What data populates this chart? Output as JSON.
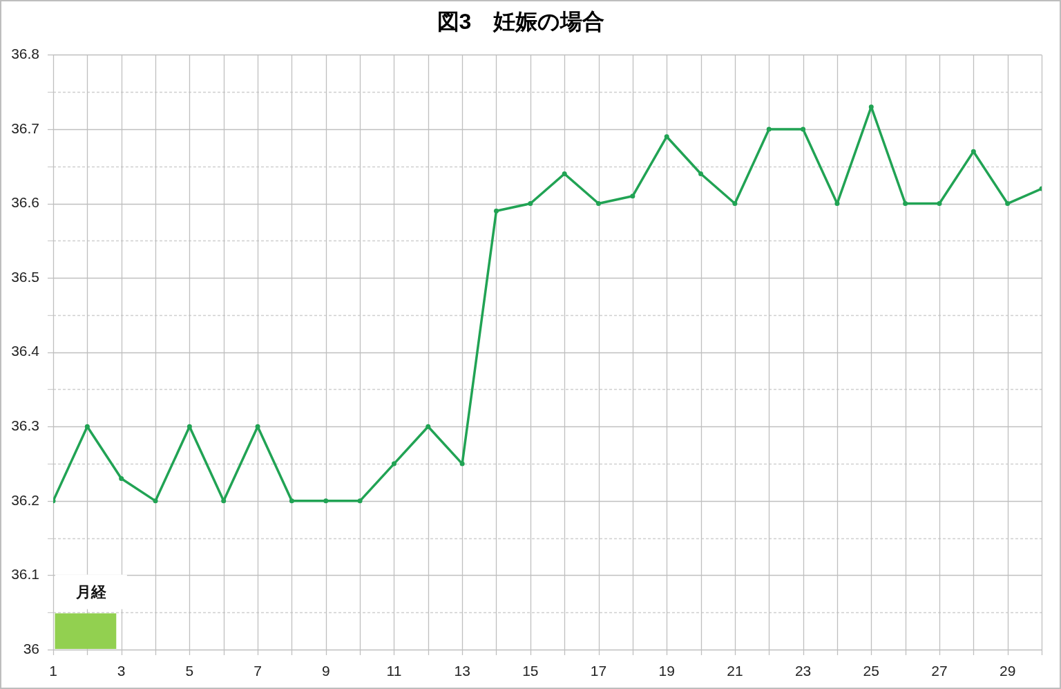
{
  "chart_data": {
    "type": "line",
    "title": "図3　妊娠の場合",
    "x": [
      1,
      2,
      3,
      4,
      5,
      6,
      7,
      8,
      9,
      10,
      11,
      12,
      13,
      14,
      15,
      16,
      17,
      18,
      19,
      20,
      21,
      22,
      23,
      24,
      25,
      26,
      27,
      28,
      29,
      30
    ],
    "values": [
      36.2,
      36.3,
      36.23,
      36.2,
      36.3,
      36.2,
      36.3,
      36.2,
      36.2,
      36.2,
      36.25,
      36.3,
      36.25,
      36.59,
      36.6,
      36.64,
      36.6,
      36.61,
      36.69,
      36.64,
      36.6,
      36.7,
      36.7,
      36.6,
      36.73,
      36.6,
      36.6,
      36.67,
      36.6,
      36.62
    ],
    "color": "#21a354",
    "xlim": [
      1,
      30
    ],
    "xticks": [
      1,
      {
        "value": 2,
        "label": null
      },
      3,
      {
        "value": 4,
        "label": null
      },
      5,
      {
        "value": 6,
        "label": null
      },
      7,
      {
        "value": 8,
        "label": null
      },
      9,
      {
        "value": 10,
        "label": null
      },
      11,
      {
        "value": 12,
        "label": null
      },
      13,
      {
        "value": 14,
        "label": null
      },
      15,
      {
        "value": 16,
        "label": null
      },
      17,
      {
        "value": 18,
        "label": null
      },
      19,
      {
        "value": 20,
        "label": null
      },
      21,
      {
        "value": 22,
        "label": null
      },
      23,
      {
        "value": 24,
        "label": null
      },
      25,
      {
        "value": 26,
        "label": null
      },
      27,
      {
        "value": 28,
        "label": null
      },
      29,
      {
        "value": 30,
        "label": null
      }
    ],
    "ylim": [
      36,
      36.8
    ],
    "yticks": [
      36,
      {
        "value": 36.05,
        "label": null
      },
      36.1,
      {
        "value": 36.15,
        "label": null
      },
      36.2,
      {
        "value": 36.25,
        "label": null
      },
      36.3,
      {
        "value": 36.35,
        "label": null
      },
      36.4,
      {
        "value": 36.45,
        "label": null
      },
      36.5,
      {
        "value": 36.55,
        "label": null
      },
      36.6,
      {
        "value": 36.65,
        "label": null
      },
      36.7,
      {
        "value": 36.75,
        "label": null
      },
      36.8
    ],
    "grid": true,
    "marker": "circle",
    "line_style": "solid",
    "bands": [
      {
        "axis": "x",
        "from": 1.05,
        "to": 2.85,
        "label": "月経",
        "color": "#92d050"
      }
    ]
  }
}
